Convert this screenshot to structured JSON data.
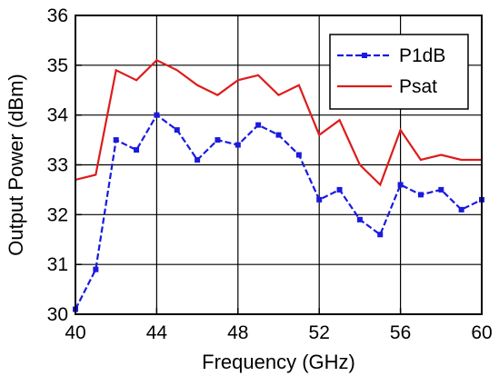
{
  "chart_data": {
    "type": "line",
    "xlabel": "Frequency (GHz)",
    "ylabel": "Output Power (dBm)",
    "xlim": [
      40,
      60
    ],
    "ylim": [
      30,
      36
    ],
    "x_ticks": [
      40,
      44,
      48,
      52,
      56,
      60
    ],
    "y_ticks": [
      30,
      31,
      32,
      33,
      34,
      35,
      36
    ],
    "grid": true,
    "legend_position": "top-right",
    "x": [
      40,
      41,
      42,
      43,
      44,
      45,
      46,
      47,
      48,
      49,
      50,
      51,
      52,
      53,
      54,
      55,
      56,
      57,
      58,
      59,
      60
    ],
    "series": [
      {
        "name": "P1dB",
        "color": "#1a1adf",
        "style": "dashed-with-square-markers",
        "values": [
          30.1,
          30.9,
          33.5,
          33.3,
          34.0,
          33.7,
          33.1,
          33.5,
          33.4,
          33.8,
          33.6,
          33.2,
          32.3,
          32.5,
          31.9,
          31.6,
          32.6,
          32.4,
          32.5,
          32.1,
          32.3
        ]
      },
      {
        "name": "Psat",
        "color": "#dd1c1c",
        "style": "solid",
        "values": [
          32.7,
          32.8,
          34.9,
          34.7,
          35.1,
          34.9,
          34.6,
          34.4,
          34.7,
          34.8,
          34.4,
          34.6,
          33.6,
          33.9,
          33.0,
          32.6,
          33.7,
          33.1,
          33.2,
          33.1,
          33.1
        ]
      }
    ]
  }
}
